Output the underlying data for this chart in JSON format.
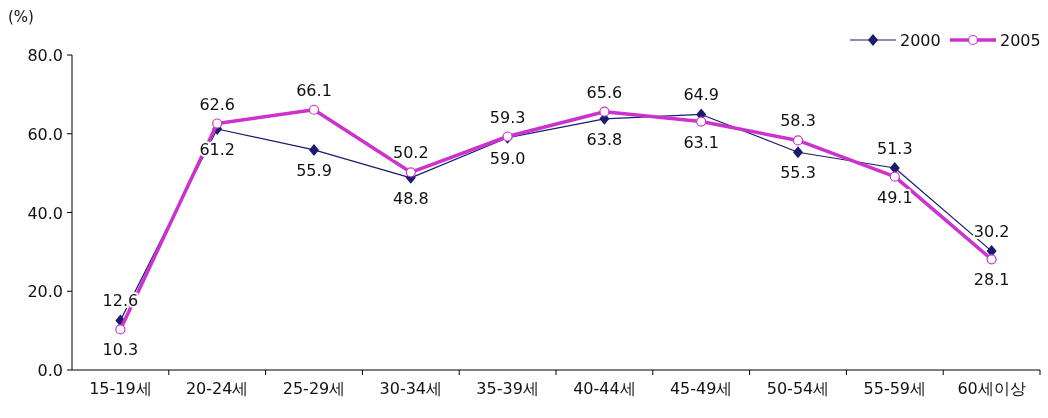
{
  "chart_data": {
    "type": "line",
    "ylabel": "(%)",
    "categories": [
      "15-19세",
      "20-24세",
      "25-29세",
      "30-34세",
      "35-39세",
      "40-44세",
      "45-49세",
      "50-54세",
      "55-59세",
      "60세이상"
    ],
    "series": [
      {
        "name": "2000",
        "color": "#1a1a6e",
        "marker": "diamond",
        "values": [
          12.6,
          61.2,
          55.9,
          48.8,
          59.0,
          63.8,
          64.9,
          55.3,
          51.3,
          30.2
        ],
        "value_labels": [
          "12.6",
          "61.2",
          "55.9",
          "48.8",
          "59.0",
          "63.8",
          "64.9",
          "55.3",
          "51.3",
          "30.2"
        ]
      },
      {
        "name": "2005",
        "color": "#cc33cc",
        "marker": "circle",
        "values": [
          10.3,
          62.6,
          66.1,
          50.2,
          59.3,
          65.6,
          63.1,
          58.3,
          49.1,
          28.1
        ],
        "value_labels": [
          "10.3",
          "62.6",
          "66.1",
          "50.2",
          "59.3",
          "65.6",
          "63.1",
          "58.3",
          "49.1",
          "28.1"
        ]
      }
    ],
    "ylim": [
      0,
      80
    ],
    "yticks": [
      {
        "value": 0,
        "label": "0.0"
      },
      {
        "value": 20,
        "label": "20.0"
      },
      {
        "value": 40,
        "label": "40.0"
      },
      {
        "value": 60,
        "label": "60.0"
      },
      {
        "value": 80,
        "label": "80.0"
      }
    ],
    "grid": false,
    "legend": "top right"
  }
}
